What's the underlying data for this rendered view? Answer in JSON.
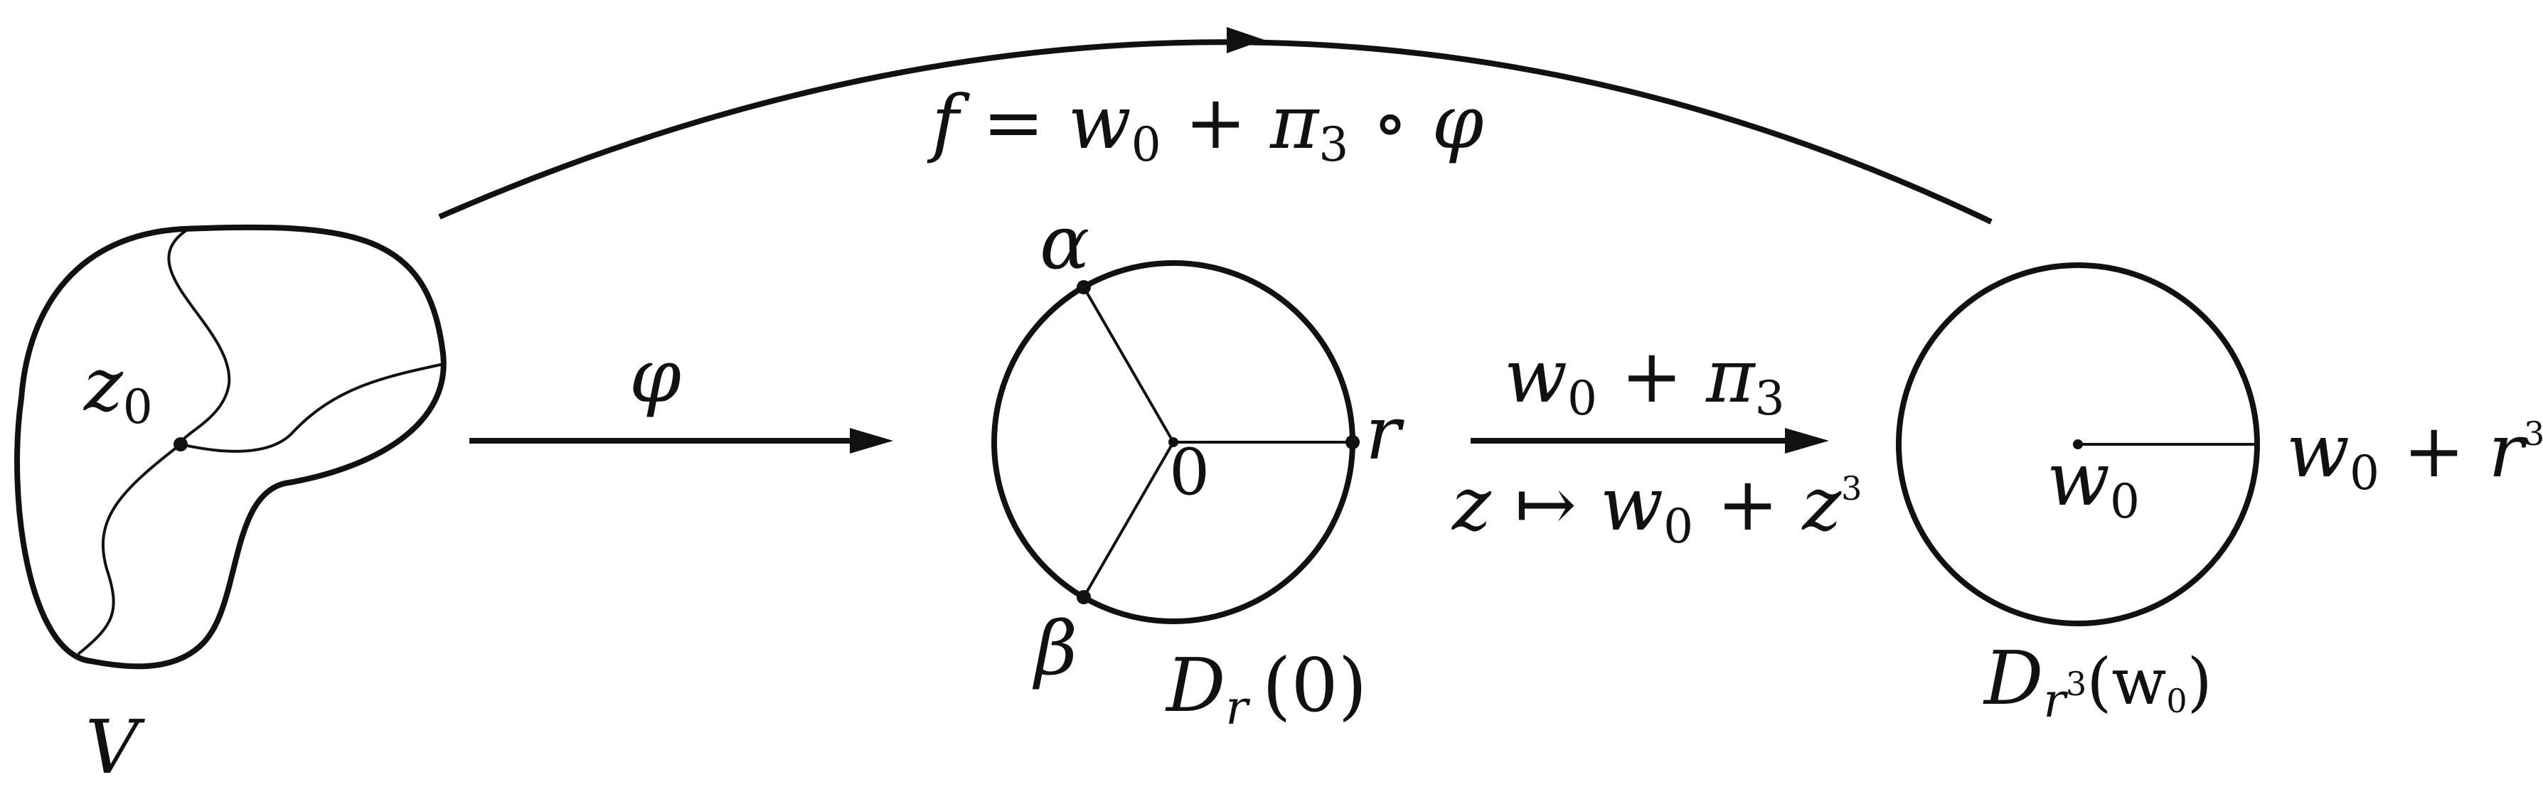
{
  "labels": {
    "domain_V": "V",
    "point_z0": "z",
    "point_z0_sub": "0",
    "map_phi": "φ",
    "composite_f": "f = w",
    "composite_f_sub0": "0",
    "composite_f_plus": " + π",
    "composite_f_sub3": "3",
    "composite_f_tail": " ∘ φ",
    "alpha": "α",
    "beta": "β",
    "origin": "0",
    "radius_r": "r",
    "disk_D": "D",
    "disk_D_sub": "r",
    "disk_D_arg": "(0)",
    "map2_top_w": "w",
    "map2_top_sub0": "0",
    "map2_top_plus": " + π",
    "map2_top_sub3": "3",
    "map2_bottom_z": "z",
    "map2_bottom_mapsto": " ↦ w",
    "map2_bottom_sub0": "0",
    "map2_bottom_plus": " + z",
    "map2_bottom_exp": "3",
    "center_w": "w",
    "center_w_sub": "0",
    "edge_w": "w",
    "edge_w_sub": "0",
    "edge_plus": " + r",
    "edge_exp": "3",
    "disk2_D": "D",
    "disk2_sub_r": "r",
    "disk2_sub_exp": "3",
    "disk2_arg_open": "(w",
    "disk2_arg_sub": "0",
    "disk2_arg_close": ")"
  }
}
